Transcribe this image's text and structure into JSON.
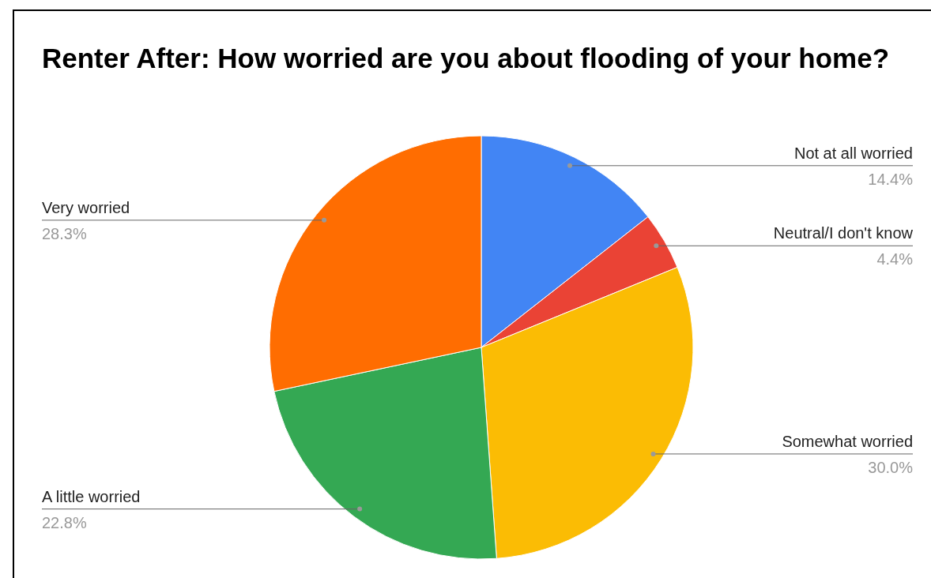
{
  "chart_data": {
    "type": "pie",
    "title": "Renter After: How worried are you about flooding of your home?",
    "categories": [
      "Not at all worried",
      "Neutral/I don't know",
      "Somewhat worried",
      "A little worried",
      "Very worried"
    ],
    "values": [
      14.4,
      4.4,
      30.0,
      22.8,
      28.3
    ],
    "value_labels": [
      "14.4%",
      "4.4%",
      "30.0%",
      "22.8%",
      "28.3%"
    ],
    "colors": [
      "#4285f4",
      "#ea4335",
      "#fbbc04",
      "#34a853",
      "#ff6d01"
    ]
  }
}
